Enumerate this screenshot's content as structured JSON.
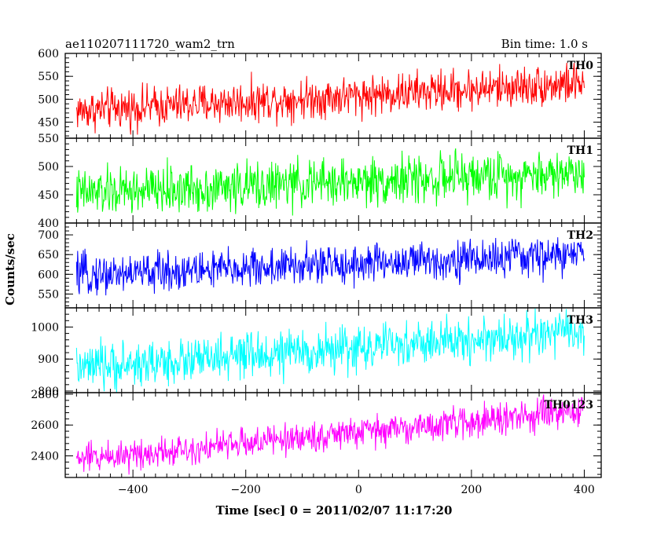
{
  "chart_data": {
    "type": "line",
    "title": "ae110207111720_wam2_trn",
    "bin_time_label": "Bin time: 1.0 s",
    "xlabel": "Time [sec] 0 = 2011/02/07 11:17:20",
    "ylabel": "Counts/sec",
    "xlim": [
      -520,
      430
    ],
    "x_ticks": [
      -400,
      -200,
      0,
      200,
      400
    ],
    "x_data_range": [
      -500,
      400
    ],
    "grid": false,
    "panels": [
      {
        "name": "TH0",
        "color": "#ff0000",
        "ylim": [
          415,
          600
        ],
        "y_ticks": [
          450,
          500,
          550,
          600
        ],
        "trend_start": 475,
        "trend_end": 535,
        "noise": 22,
        "y_ticks_labels": [
          "450",
          "500",
          "550",
          "600"
        ]
      },
      {
        "name": "TH1",
        "color": "#00ff00",
        "ylim": [
          400,
          550
        ],
        "y_ticks": [
          400,
          450,
          500,
          550
        ],
        "trend_start": 452,
        "trend_end": 490,
        "noise": 21,
        "y_ticks_labels": [
          "400",
          "450",
          "500",
          "550"
        ]
      },
      {
        "name": "TH2",
        "color": "#0000ff",
        "ylim": [
          515,
          730
        ],
        "y_ticks": [
          550,
          600,
          650,
          700
        ],
        "trend_start": 598,
        "trend_end": 650,
        "noise": 25,
        "y_ticks_labels": [
          "550",
          "600",
          "650",
          "700"
        ]
      },
      {
        "name": "TH3",
        "color": "#00ffff",
        "ylim": [
          795,
          1060
        ],
        "y_ticks": [
          800,
          900,
          1000
        ],
        "trend_start": 870,
        "trend_end": 985,
        "noise": 35,
        "y_ticks_labels": [
          "800",
          "900",
          "1000"
        ]
      },
      {
        "name": "TH0123",
        "color": "#ff00ff",
        "ylim": [
          2260,
          2810
        ],
        "y_ticks": [
          2400,
          2600,
          2800
        ],
        "trend_start": 2380,
        "trend_end": 2690,
        "noise": 50,
        "y_ticks_labels": [
          "2400",
          "2600",
          "2800"
        ]
      }
    ]
  }
}
